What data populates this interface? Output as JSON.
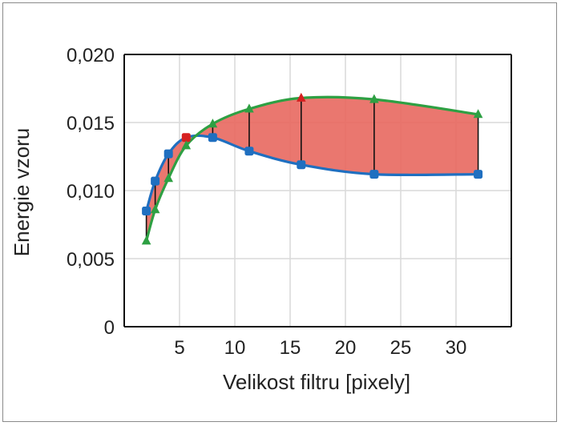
{
  "chart_data": {
    "type": "line",
    "xlabel": "Velikost filtru [pixely]",
    "ylabel": "Energie vzoru",
    "xlim": [
      0,
      35
    ],
    "ylim": [
      0,
      0.02
    ],
    "x_ticks": [
      "5",
      "10",
      "15",
      "20",
      "25",
      "30"
    ],
    "x_tick_values": [
      5,
      10,
      15,
      20,
      25,
      30
    ],
    "y_ticks": [
      "0",
      "0,005",
      "0,010",
      "0,015",
      "0,020"
    ],
    "y_tick_values": [
      0,
      0.005,
      0.01,
      0.015,
      0.02
    ],
    "grid": true,
    "legend": "none",
    "series": [
      {
        "color": "#1f6fc0",
        "x": [
          2,
          2.8,
          4,
          5.6,
          8,
          11.3,
          16,
          22.6,
          32
        ],
        "y": [
          0.0085,
          0.0107,
          0.0127,
          0.0139,
          0.0139,
          0.0129,
          0.0119,
          0.0112,
          0.0112
        ]
      },
      {
        "color": "#2ea043",
        "x": [
          2,
          2.8,
          4,
          5.6,
          8,
          11.3,
          16,
          22.6,
          32
        ],
        "y": [
          0.0063,
          0.0086,
          0.0109,
          0.0133,
          0.0149,
          0.016,
          0.0168,
          0.0167,
          0.0156
        ]
      }
    ],
    "highlight_points": [
      {
        "x": 5.6,
        "y": 0.0139,
        "color": "#d62020"
      },
      {
        "x": 16,
        "y": 0.0168,
        "color": "#d62020"
      }
    ],
    "fill_between_color": "#e8685f",
    "connector_color": "#111111"
  }
}
